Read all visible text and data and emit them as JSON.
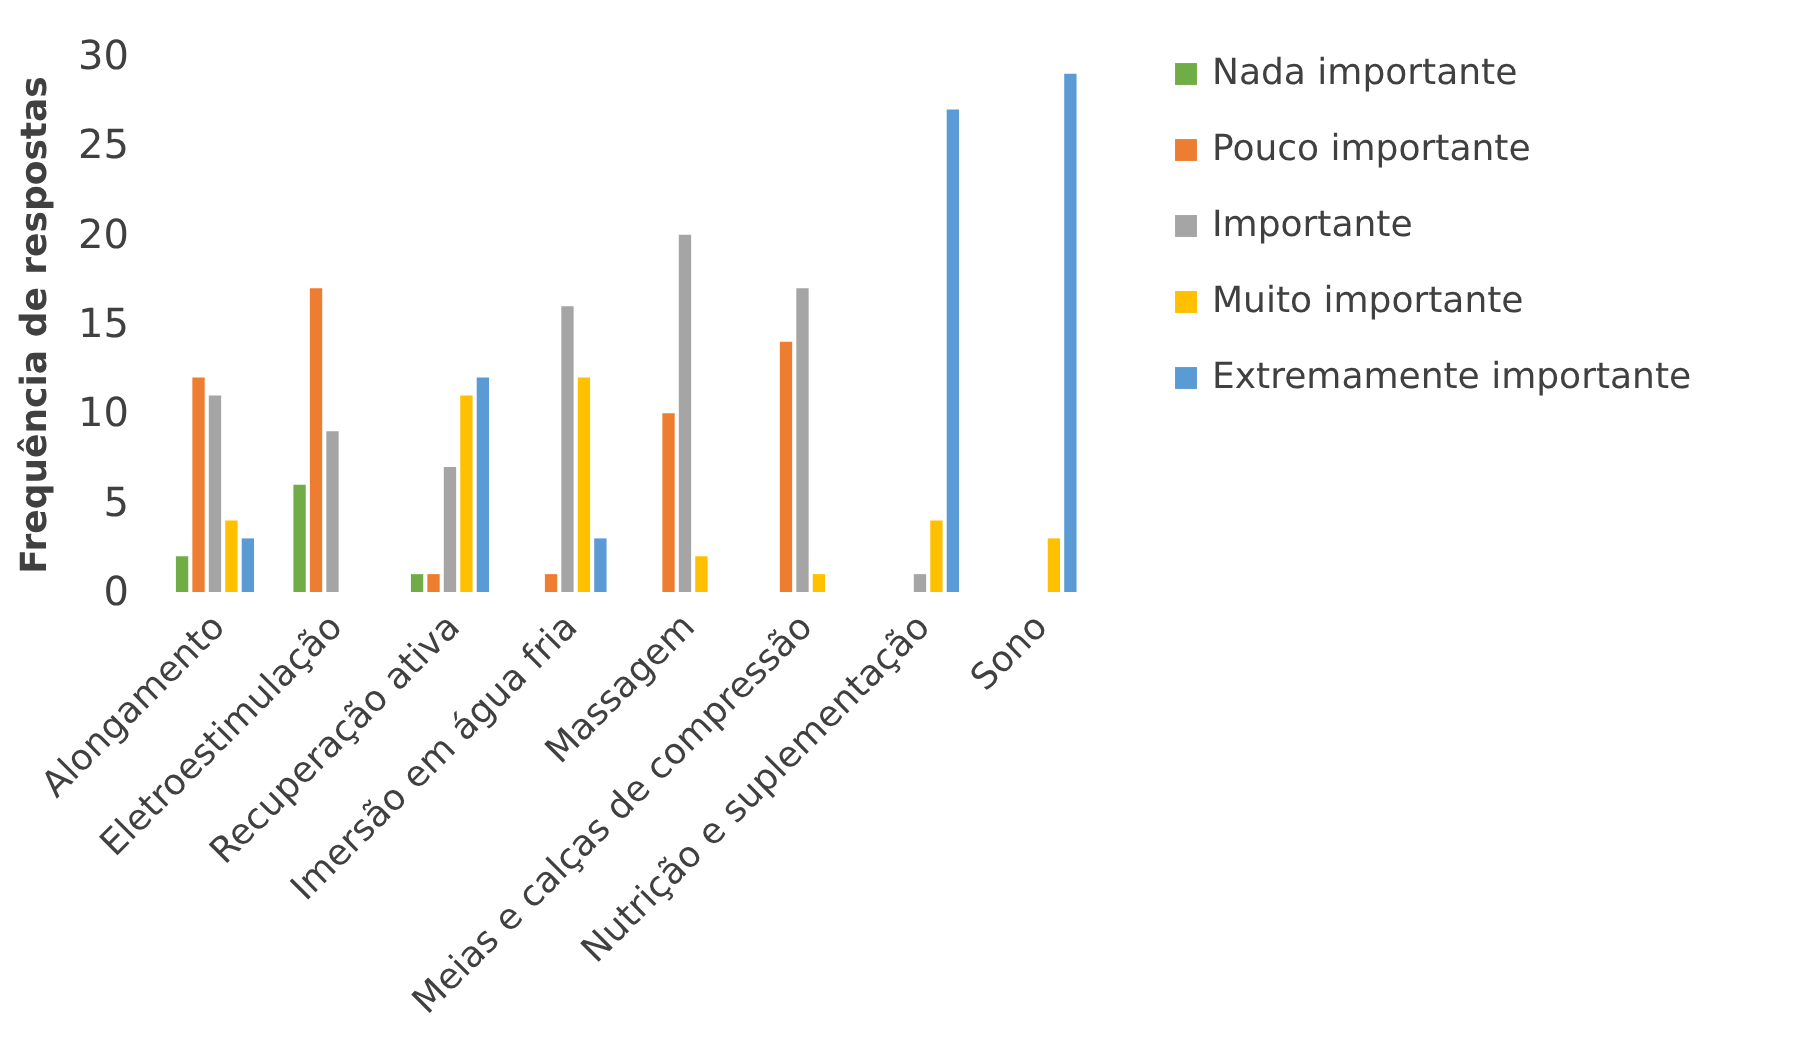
{
  "chart_data": {
    "type": "bar",
    "ylabel": "Frequência de respostas",
    "categories": [
      "Alongamento",
      "Eletroestimulação",
      "Recuperação ativa",
      "Imersão em água fria",
      "Massagem",
      "Meias e calças de compressão",
      "Nutrição e suplementação",
      "Sono"
    ],
    "series": [
      {
        "name": "Nada importante",
        "color": "#70ad47",
        "values": [
          2,
          6,
          1,
          0,
          0,
          0,
          0,
          0
        ]
      },
      {
        "name": "Pouco importante",
        "color": "#ed7d31",
        "values": [
          12,
          17,
          1,
          1,
          10,
          14,
          0,
          0
        ]
      },
      {
        "name": "Importante",
        "color": "#a5a5a5",
        "values": [
          11,
          9,
          7,
          16,
          20,
          17,
          1,
          0
        ]
      },
      {
        "name": "Muito importante",
        "color": "#ffc000",
        "values": [
          4,
          0,
          11,
          12,
          2,
          1,
          4,
          3
        ]
      },
      {
        "name": "Extremamente importante",
        "color": "#5b9bd5",
        "values": [
          3,
          0,
          12,
          3,
          0,
          0,
          27,
          29
        ]
      }
    ],
    "ylim": [
      0,
      30
    ],
    "yticks": [
      0,
      5,
      10,
      15,
      20,
      25,
      30
    ],
    "grid": false,
    "legend": "right"
  }
}
